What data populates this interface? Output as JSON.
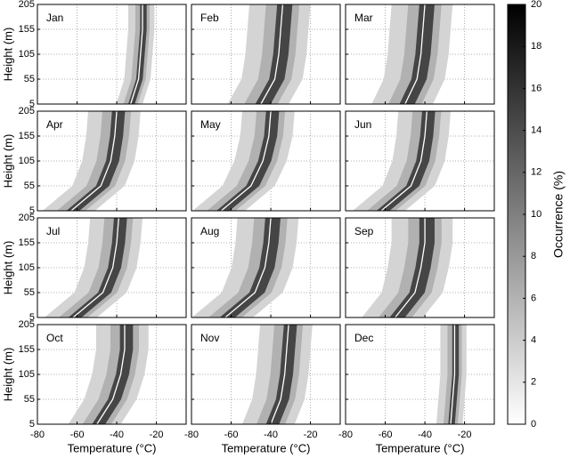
{
  "chart_data": {
    "type": "profile-grid",
    "xlabel": "Temperature (°C)",
    "ylabel": "Height (m)",
    "xlim": [
      -80,
      -5
    ],
    "xticks": [
      -80,
      -60,
      -40,
      -20
    ],
    "ylim": [
      5,
      205
    ],
    "yticks": [
      5,
      55,
      105,
      155,
      205
    ],
    "heights": [
      5,
      55,
      105,
      155,
      205
    ],
    "grid": true,
    "panels": [
      {
        "title": "Jan",
        "values": [
          -33,
          -29,
          -28,
          -27,
          -27
        ],
        "spread": 6
      },
      {
        "title": "Feb",
        "values": [
          -45,
          -38,
          -36,
          -35,
          -34
        ],
        "spread": 14
      },
      {
        "title": "Mar",
        "values": [
          -50,
          -44,
          -42,
          -41,
          -40
        ],
        "spread": 14
      },
      {
        "title": "Apr",
        "values": [
          -63,
          -48,
          -43,
          -41,
          -40
        ],
        "spread": 12
      },
      {
        "title": "May",
        "values": [
          -65,
          -50,
          -44,
          -41,
          -40
        ],
        "spread": 12
      },
      {
        "title": "Jun",
        "values": [
          -62,
          -47,
          -42,
          -40,
          -39
        ],
        "spread": 12
      },
      {
        "title": "Jul",
        "values": [
          -62,
          -47,
          -42,
          -40,
          -39
        ],
        "spread": 12
      },
      {
        "title": "Aug",
        "values": [
          -63,
          -48,
          -43,
          -41,
          -40
        ],
        "spread": 14
      },
      {
        "title": "Sep",
        "values": [
          -55,
          -45,
          -42,
          -40,
          -40
        ],
        "spread": 14
      },
      {
        "title": "Oct",
        "values": [
          -50,
          -42,
          -38,
          -36,
          -36
        ],
        "spread": 12
      },
      {
        "title": "Nov",
        "values": [
          -40,
          -35,
          -33,
          -32,
          -31
        ],
        "spread": 12
      },
      {
        "title": "Dec",
        "values": [
          -27,
          -26,
          -25,
          -25,
          -25
        ],
        "spread": 6
      }
    ],
    "colorbar": {
      "label": "Occurrence (%)",
      "lim": [
        0,
        20
      ],
      "ticks": [
        0,
        2,
        4,
        6,
        8,
        10,
        12,
        14,
        16,
        18,
        20
      ],
      "colors": [
        "#ffffff",
        "#000000"
      ]
    }
  }
}
